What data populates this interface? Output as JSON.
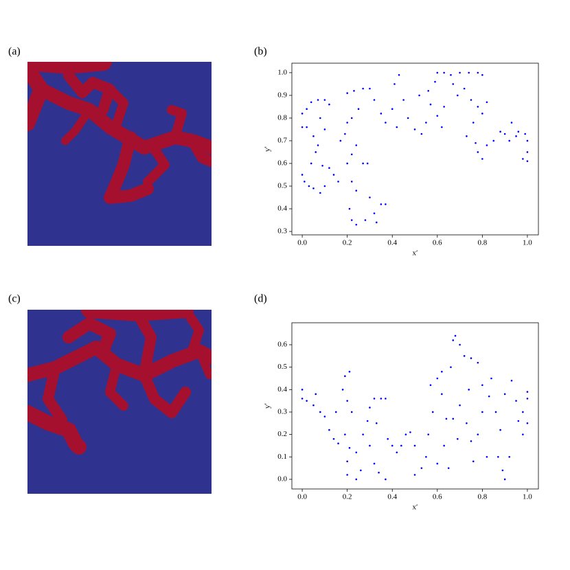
{
  "panel_labels": [
    "(a)",
    "(b)",
    "(c)",
    "(d)"
  ],
  "chart_data": [
    {
      "type": "scatter",
      "xlabel": "x′",
      "ylabel": "y′",
      "color": "#0000ff",
      "xlim": [
        -0.046,
        1.049
      ],
      "ylim": [
        0.285,
        1.042
      ],
      "xticks": [
        {
          "value": 0,
          "label": "0.0"
        },
        0.2,
        0.4,
        0.6,
        0.8,
        {
          "value": 1,
          "label": "1.0"
        }
      ],
      "yticks": [
        0.3,
        0.4,
        0.5,
        0.6,
        0.7,
        0.8,
        0.9,
        {
          "value": 1,
          "label": "1.0"
        }
      ],
      "x": [
        0,
        0,
        0.02,
        0,
        0.01,
        0.03,
        0.05,
        0.04,
        0.06,
        0.07,
        0.05,
        0.02,
        0.04,
        0.07,
        0.1,
        0.12,
        0.08,
        0.1,
        0.09,
        0.12,
        0.14,
        0.16,
        0.1,
        0.08,
        0.17,
        0.19,
        0.2,
        0.22,
        0.25,
        0.24,
        0.22,
        0.2,
        0.27,
        0.29,
        0.22,
        0.24,
        0.21,
        0.22,
        0.24,
        0.28,
        0.3,
        0.32,
        0.35,
        0.37,
        0.33,
        0.2,
        0.23,
        0.27,
        0.3,
        0.32,
        0.35,
        0.37,
        0.4,
        0.41,
        0.43,
        0.45,
        0.42,
        0.47,
        0.5,
        0.53,
        0.55,
        0.52,
        0.56,
        0.59,
        0.57,
        0.6,
        0.62,
        0.63,
        0.6,
        0.63,
        0.66,
        0.7,
        0.74,
        0.78,
        0.8,
        0.67,
        0.69,
        0.72,
        0.75,
        0.78,
        0.8,
        0.82,
        0.76,
        0.73,
        0.77,
        0.78,
        0.8,
        0.82,
        0.85,
        0.88,
        0.9,
        0.93,
        0.95,
        0.96,
        0.99,
        1,
        1,
        1,
        0.98,
        0.92
      ],
      "y": [
        0.82,
        0.76,
        0.76,
        0.55,
        0.52,
        0.5,
        0.49,
        0.6,
        0.65,
        0.68,
        0.72,
        0.84,
        0.87,
        0.88,
        0.88,
        0.86,
        0.8,
        0.75,
        0.59,
        0.58,
        0.55,
        0.52,
        0.5,
        0.47,
        0.7,
        0.73,
        0.78,
        0.8,
        0.84,
        0.68,
        0.64,
        0.6,
        0.6,
        0.6,
        0.52,
        0.48,
        0.4,
        0.35,
        0.33,
        0.35,
        0.45,
        0.38,
        0.42,
        0.42,
        0.34,
        0.91,
        0.92,
        0.93,
        0.93,
        0.88,
        0.82,
        0.78,
        0.84,
        0.95,
        0.99,
        0.88,
        0.76,
        0.8,
        0.75,
        0.73,
        0.78,
        0.9,
        0.92,
        0.96,
        0.86,
        0.81,
        0.76,
        0.85,
        1,
        1,
        0.99,
        1,
        1,
        1,
        0.99,
        0.95,
        0.9,
        0.93,
        0.88,
        0.85,
        0.82,
        0.87,
        0.78,
        0.72,
        0.69,
        0.65,
        0.62,
        0.68,
        0.7,
        0.74,
        0.73,
        0.78,
        0.72,
        0.74,
        0.73,
        0.7,
        0.65,
        0.61,
        0.62,
        0.7
      ]
    },
    {
      "type": "scatter",
      "xlabel": "x′",
      "ylabel": "y′",
      "color": "#0000ff",
      "xlim": [
        -0.046,
        1.049
      ],
      "ylim": [
        -0.043,
        0.698
      ],
      "xticks": [
        {
          "value": 0,
          "label": "0.0"
        },
        0.2,
        0.4,
        0.6,
        0.8,
        {
          "value": 1,
          "label": "1.0"
        }
      ],
      "yticks": [
        {
          "value": 0,
          "label": "0.0"
        },
        0.1,
        0.2,
        0.3,
        0.4,
        0.5,
        0.6
      ],
      "x": [
        0,
        0,
        0.02,
        0.05,
        0.06,
        0.08,
        0.1,
        0.12,
        0.14,
        0.16,
        0.15,
        0.18,
        0.19,
        0.21,
        0.2,
        0.22,
        0.19,
        0.21,
        0.2,
        0.2,
        0.24,
        0.26,
        0.24,
        0.27,
        0.29,
        0.3,
        0.32,
        0.35,
        0.37,
        0.33,
        0.3,
        0.32,
        0.34,
        0.37,
        0.38,
        0.4,
        0.42,
        0.44,
        0.46,
        0.48,
        0.5,
        0.5,
        0.53,
        0.55,
        0.56,
        0.58,
        0.57,
        0.6,
        0.62,
        0.64,
        0.63,
        0.6,
        0.65,
        0.66,
        0.67,
        0.68,
        0.7,
        0.72,
        0.75,
        0.78,
        0.74,
        0.7,
        0.73,
        0.69,
        0.76,
        0.75,
        0.78,
        0.8,
        0.8,
        0.83,
        0.86,
        0.88,
        0.87,
        0.89,
        0.9,
        0.92,
        0.9,
        0.93,
        0.95,
        0.96,
        0.98,
        1,
        1,
        1,
        0.98,
        0.84,
        0.82,
        0.67,
        0.62
      ],
      "y": [
        0.4,
        0.36,
        0.35,
        0.33,
        0.38,
        0.3,
        0.28,
        0.22,
        0.18,
        0.16,
        0.3,
        0.4,
        0.46,
        0.48,
        0.35,
        0.3,
        0.2,
        0.14,
        0.08,
        0.02,
        0,
        0.04,
        0.12,
        0.2,
        0.26,
        0.32,
        0.36,
        0.36,
        0.36,
        0.25,
        0.15,
        0.07,
        0.03,
        0,
        0.18,
        0.15,
        0.12,
        0.15,
        0.2,
        0.21,
        0.15,
        0.02,
        0.05,
        0.1,
        0.2,
        0.3,
        0.42,
        0.45,
        0.38,
        0.27,
        0.15,
        0.07,
        0.05,
        0.5,
        0.62,
        0.64,
        0.6,
        0.55,
        0.54,
        0.52,
        0.4,
        0.33,
        0.25,
        0.18,
        0.08,
        0.17,
        0.2,
        0.3,
        0.42,
        0.37,
        0.3,
        0.22,
        0.1,
        0.04,
        0,
        0.1,
        0.38,
        0.44,
        0.35,
        0.26,
        0.2,
        0.25,
        0.36,
        0.39,
        0.3,
        0.45,
        0.1,
        0.27,
        0.48
      ]
    }
  ]
}
